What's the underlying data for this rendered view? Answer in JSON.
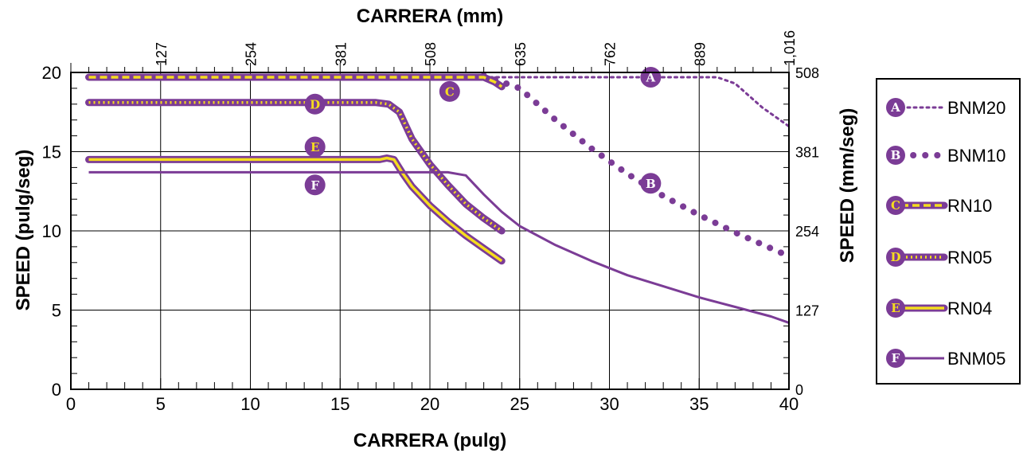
{
  "chart_data": {
    "type": "line",
    "xlabel_bottom": "CARRERA (pulg)",
    "xlabel_top": "CARRERA (mm)",
    "ylabel_left": "SPEED (pulg/seg)",
    "ylabel_right": "SPEED (mm/seg)",
    "xlim": [
      0,
      40
    ],
    "ylim": [
      0,
      20
    ],
    "x_ticks": [
      "0",
      "5",
      "10",
      "15",
      "20",
      "25",
      "30",
      "35",
      "40"
    ],
    "y_ticks": [
      "0",
      "5",
      "10",
      "15",
      "20"
    ],
    "x_ticks_top": [
      "127",
      "254",
      "381",
      "508",
      "635",
      "762",
      "889",
      "1,016"
    ],
    "y_ticks_right": [
      "0",
      "127",
      "254",
      "381",
      "508"
    ],
    "grid": true,
    "legend_position": "right",
    "series": [
      {
        "name": "BNM20",
        "badge": "A",
        "style": "dotted-purple",
        "x": [
          1,
          10,
          20,
          25,
          30,
          36,
          37,
          38.5,
          40
        ],
        "y": [
          19.7,
          19.7,
          19.7,
          19.7,
          19.7,
          19.7,
          19.3,
          17.8,
          16.6
        ],
        "badge_at": [
          32.3,
          19.7
        ]
      },
      {
        "name": "BNM10",
        "badge": "B",
        "style": "big-dotted-purple",
        "x": [
          23,
          25,
          27,
          29,
          31,
          33,
          35,
          37,
          39,
          40
        ],
        "y": [
          19.8,
          19.0,
          17.0,
          15.2,
          13.6,
          12.2,
          11.0,
          9.9,
          8.9,
          8.4
        ],
        "badge_at": [
          32.3,
          13.0
        ]
      },
      {
        "name": "RN10",
        "badge": "C",
        "style": "yellow-dashed-on-purple",
        "x": [
          1,
          10,
          20,
          23,
          23.6,
          24
        ],
        "y": [
          19.7,
          19.7,
          19.7,
          19.7,
          19.4,
          19.1
        ],
        "badge_at": [
          21.1,
          18.8
        ]
      },
      {
        "name": "RN05",
        "badge": "D",
        "style": "yellow-dotted-on-purple",
        "x": [
          1,
          10,
          17,
          17.7,
          18.3,
          19,
          20,
          21,
          22,
          23,
          24
        ],
        "y": [
          18.1,
          18.1,
          18.1,
          18.0,
          17.5,
          15.8,
          14.2,
          12.9,
          11.7,
          10.8,
          10.0
        ],
        "badge_at": [
          13.6,
          18.0
        ]
      },
      {
        "name": "RN04",
        "badge": "E",
        "style": "yellow-solid-on-purple",
        "x": [
          1,
          10,
          17.2,
          17.6,
          18.0,
          18.5,
          19,
          20,
          21,
          22,
          23,
          24
        ],
        "y": [
          14.5,
          14.5,
          14.5,
          14.6,
          14.5,
          13.6,
          12.8,
          11.6,
          10.6,
          9.7,
          8.9,
          8.1
        ],
        "badge_at": [
          13.6,
          15.3
        ]
      },
      {
        "name": "BNM05",
        "badge": "F",
        "style": "thin-solid-purple",
        "x": [
          1,
          10,
          21,
          22,
          23,
          24,
          25,
          27,
          29,
          31,
          33,
          35,
          37,
          39,
          40
        ],
        "y": [
          13.7,
          13.7,
          13.7,
          13.5,
          12.3,
          11.2,
          10.3,
          9.1,
          8.1,
          7.2,
          6.5,
          5.8,
          5.2,
          4.6,
          4.2
        ],
        "badge_at": [
          13.6,
          12.9
        ]
      }
    ]
  },
  "colors": {
    "purple": "#7b3c96",
    "yellow": "#f5dc1e",
    "grid": "#000000"
  }
}
